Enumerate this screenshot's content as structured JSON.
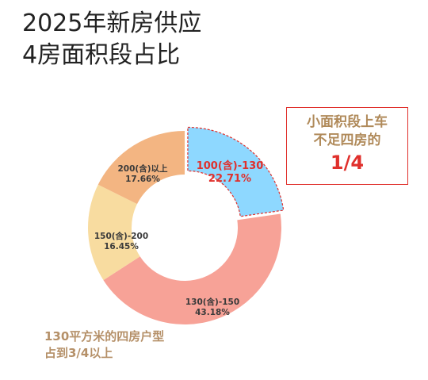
{
  "title": {
    "line1": "2025年新房供应",
    "line2": "4房面积段占比"
  },
  "colors": {
    "seg_100_130": "#8ed8ff",
    "seg_130_150": "#f7a297",
    "seg_150_200": "#f8dca0",
    "seg_200_plus": "#f3b582",
    "highlight": "#e0302c",
    "note": "#b59068"
  },
  "chart_data": {
    "type": "pie",
    "donut": true,
    "slices": [
      {
        "label": "100(含)-130",
        "value": 22.71,
        "value_label": "22.71%",
        "color": "#8ed8ff",
        "highlight": true
      },
      {
        "label": "130(含)-150",
        "value": 43.18,
        "value_label": "43.18%",
        "color": "#f7a297"
      },
      {
        "label": "150(含)-200",
        "value": 16.45,
        "value_label": "16.45%",
        "color": "#f8dca0"
      },
      {
        "label": "200(含)以上",
        "value": 17.66,
        "value_label": "17.66%",
        "color": "#f3b582"
      }
    ]
  },
  "callout": {
    "line1": "小面积段上车",
    "line2": "不足四房的",
    "fraction": "1/4"
  },
  "note": {
    "line1": "130平方米的四房户型",
    "line2": "占到3/4以上"
  }
}
